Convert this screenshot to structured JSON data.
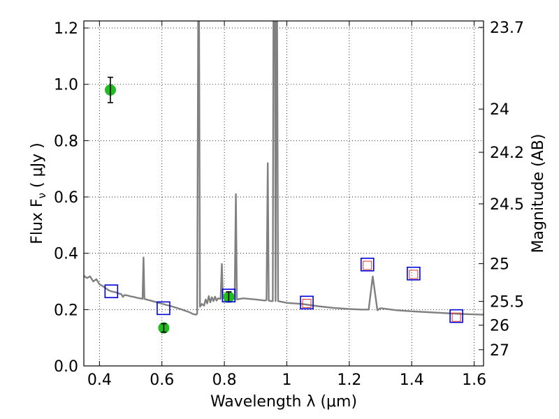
{
  "chart_data": {
    "type": "scatter",
    "xlabel": "Wavelength  λ (μm)",
    "ylabel": "Flux  F",
    "ylabel_sub": "ν",
    "ylabel_units": " ( μJy )",
    "y2label": "Magnitude (AB)",
    "xlim": [
      0.35,
      1.63
    ],
    "ylim": [
      0.0,
      1.225
    ],
    "x_ticks": [
      0.4,
      0.6,
      0.8,
      1.0,
      1.2,
      1.4,
      1.6
    ],
    "x_tick_labels": [
      "0.4",
      "0.6",
      "0.8",
      "1",
      "1.2",
      "1.4",
      "1.6"
    ],
    "y_ticks": [
      0.0,
      0.2,
      0.4,
      0.6,
      0.8,
      1.0,
      1.2
    ],
    "y_tick_labels": [
      "0.0",
      "0.2",
      "0.4",
      "0.6",
      "0.8",
      "1.0",
      "1.2"
    ],
    "y2_ticks": [
      23.7,
      24,
      24.2,
      24.5,
      25,
      25.5,
      26,
      27
    ],
    "y2_tick_labels": [
      "23.7",
      "24",
      "24.2",
      "24.5",
      "25",
      "25.5",
      "26",
      "27"
    ],
    "grid": true,
    "colors": {
      "spectrum": "#808080",
      "observed": "#22bb22",
      "model_box": "#0000dd",
      "inner_box": "#dd3333",
      "grid": "#000000"
    },
    "series": [
      {
        "kind": "line",
        "color": "#808080",
        "points": [
          [
            0.35,
            0.32
          ],
          [
            0.36,
            0.312
          ],
          [
            0.37,
            0.318
          ],
          [
            0.38,
            0.3
          ],
          [
            0.39,
            0.308
          ],
          [
            0.4,
            0.29
          ],
          [
            0.41,
            0.284
          ],
          [
            0.42,
            0.276
          ],
          [
            0.43,
            0.268
          ],
          [
            0.44,
            0.264
          ],
          [
            0.45,
            0.262
          ],
          [
            0.46,
            0.258
          ],
          [
            0.47,
            0.255
          ],
          [
            0.475,
            0.245
          ],
          [
            0.48,
            0.252
          ],
          [
            0.49,
            0.25
          ],
          [
            0.5,
            0.247
          ],
          [
            0.51,
            0.245
          ],
          [
            0.52,
            0.242
          ],
          [
            0.53,
            0.24
          ],
          [
            0.538,
            0.238
          ],
          [
            0.541,
            0.385
          ],
          [
            0.544,
            0.238
          ],
          [
            0.55,
            0.236
          ],
          [
            0.57,
            0.23
          ],
          [
            0.59,
            0.224
          ],
          [
            0.61,
            0.218
          ],
          [
            0.63,
            0.212
          ],
          [
            0.65,
            0.205
          ],
          [
            0.67,
            0.198
          ],
          [
            0.69,
            0.19
          ],
          [
            0.7,
            0.184
          ],
          [
            0.71,
            0.182
          ],
          [
            0.713,
            0.186
          ],
          [
            0.716,
            1.225
          ],
          [
            0.719,
            1.225
          ],
          [
            0.722,
            0.21
          ],
          [
            0.728,
            0.22
          ],
          [
            0.735,
            0.214
          ],
          [
            0.74,
            0.236
          ],
          [
            0.745,
            0.222
          ],
          [
            0.75,
            0.248
          ],
          [
            0.755,
            0.226
          ],
          [
            0.76,
            0.244
          ],
          [
            0.765,
            0.23
          ],
          [
            0.77,
            0.246
          ],
          [
            0.775,
            0.232
          ],
          [
            0.78,
            0.24
          ],
          [
            0.788,
            0.238
          ],
          [
            0.792,
            0.362
          ],
          [
            0.795,
            0.24
          ],
          [
            0.8,
            0.245
          ],
          [
            0.82,
            0.243
          ],
          [
            0.828,
            0.24
          ],
          [
            0.833,
            0.236
          ],
          [
            0.837,
            0.61
          ],
          [
            0.84,
            0.236
          ],
          [
            0.86,
            0.24
          ],
          [
            0.9,
            0.236
          ],
          [
            0.93,
            0.232
          ],
          [
            0.935,
            0.234
          ],
          [
            0.939,
            0.72
          ],
          [
            0.942,
            0.232
          ],
          [
            0.95,
            0.23
          ],
          [
            0.955,
            0.23
          ],
          [
            0.957,
            1.225
          ],
          [
            0.962,
            1.225
          ],
          [
            0.964,
            0.23
          ],
          [
            0.966,
            1.225
          ],
          [
            0.969,
            1.225
          ],
          [
            0.972,
            0.23
          ],
          [
            1.0,
            0.224
          ],
          [
            1.05,
            0.22
          ],
          [
            1.1,
            0.212
          ],
          [
            1.15,
            0.206
          ],
          [
            1.2,
            0.202
          ],
          [
            1.24,
            0.2
          ],
          [
            1.262,
            0.2
          ],
          [
            1.275,
            0.318
          ],
          [
            1.29,
            0.198
          ],
          [
            1.3,
            0.205
          ],
          [
            1.35,
            0.198
          ],
          [
            1.4,
            0.194
          ],
          [
            1.45,
            0.191
          ],
          [
            1.5,
            0.188
          ],
          [
            1.55,
            0.185
          ],
          [
            1.6,
            0.183
          ],
          [
            1.63,
            0.182
          ]
        ]
      },
      {
        "kind": "errorbar-points",
        "color": "#22bb22",
        "points": [
          {
            "x": 0.435,
            "y": 0.98,
            "err": 0.045
          },
          {
            "x": 0.606,
            "y": 0.135,
            "err": 0.015
          },
          {
            "x": 0.814,
            "y": 0.245,
            "err": 0.018
          }
        ]
      },
      {
        "kind": "model-boxes",
        "color": "#0000dd",
        "points": [
          {
            "x": 0.438,
            "y": 0.265
          },
          {
            "x": 0.605,
            "y": 0.205
          },
          {
            "x": 0.814,
            "y": 0.25
          },
          {
            "x": 1.064,
            "y": 0.225
          },
          {
            "x": 1.258,
            "y": 0.36
          },
          {
            "x": 1.406,
            "y": 0.328
          },
          {
            "x": 1.543,
            "y": 0.177
          }
        ]
      },
      {
        "kind": "inner-boxes",
        "color": "#dd3333",
        "points": [
          {
            "x": 1.064,
            "y": 0.222
          },
          {
            "x": 1.258,
            "y": 0.357
          },
          {
            "x": 1.406,
            "y": 0.325
          },
          {
            "x": 1.543,
            "y": 0.173
          }
        ]
      }
    ]
  }
}
